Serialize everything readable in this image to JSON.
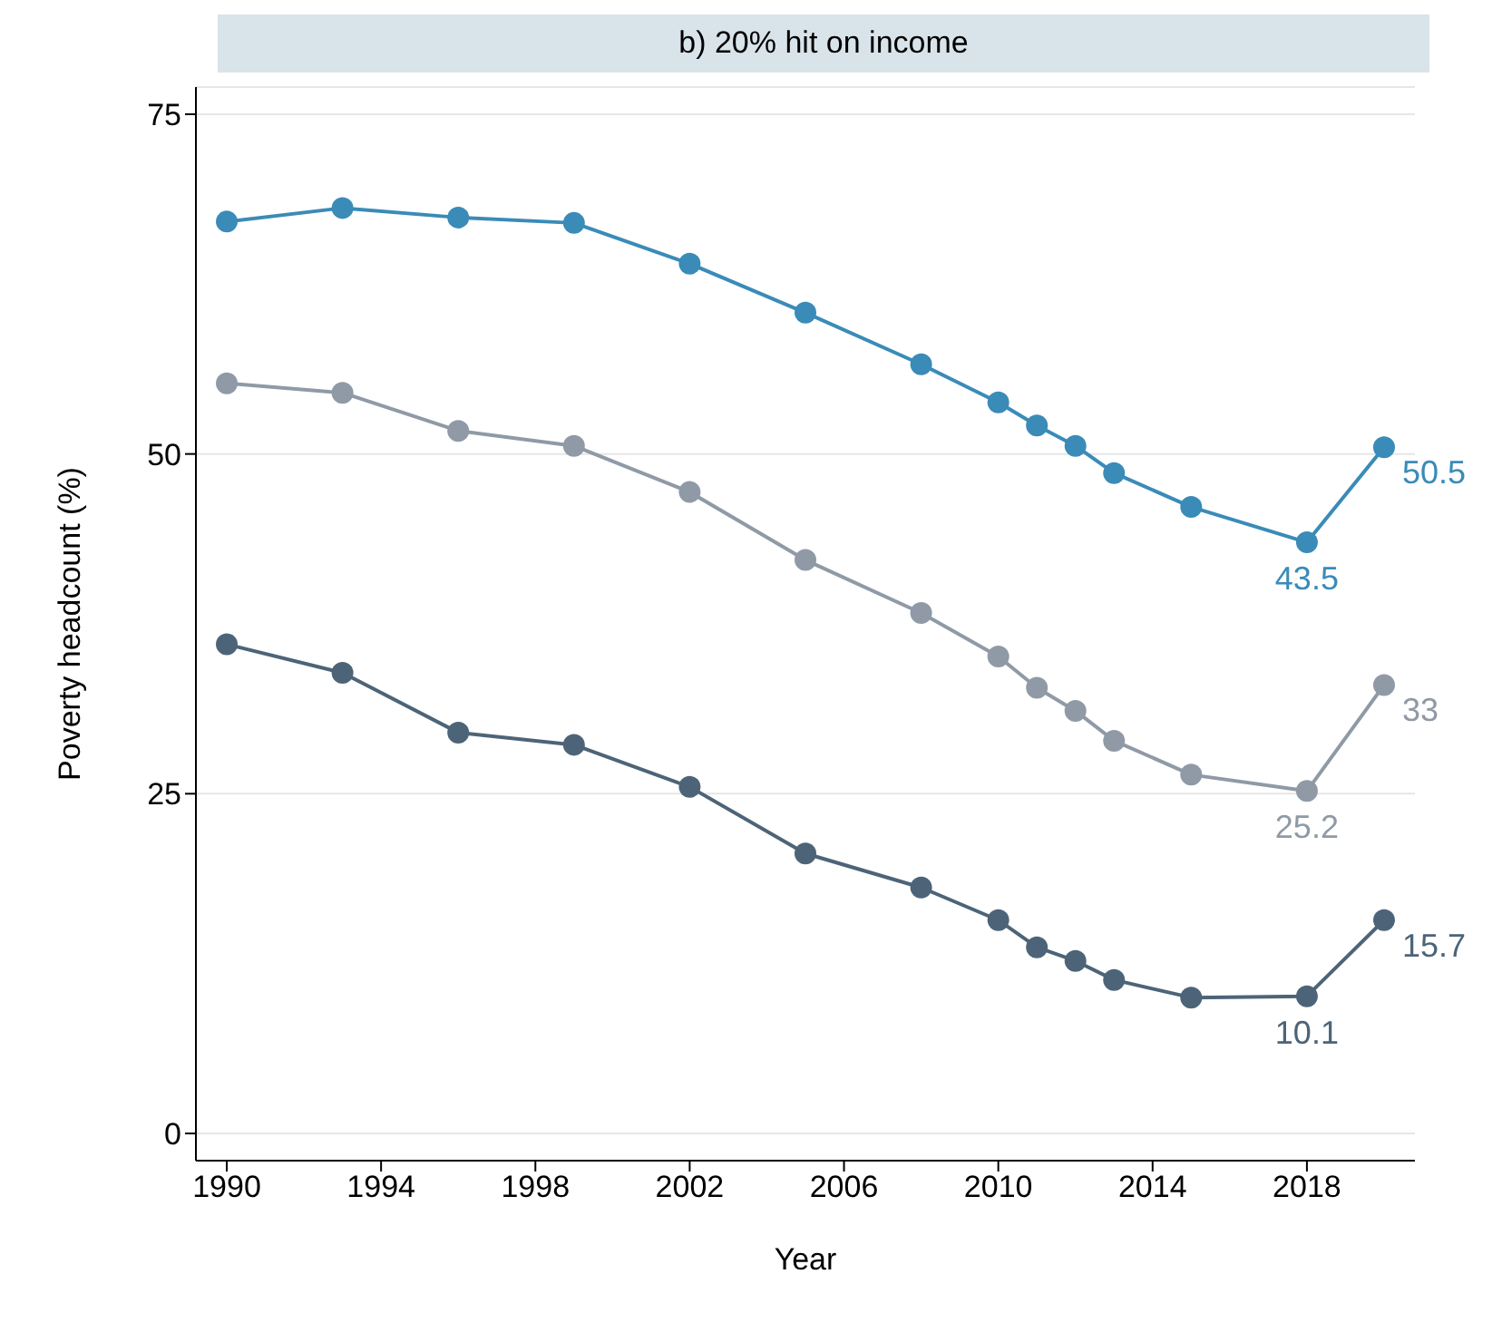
{
  "chart_data": {
    "type": "line",
    "title": "b) 20% hit on income",
    "xlabel": "Year",
    "ylabel": "Poverty headcount (%)",
    "x": [
      1990,
      1993,
      1996,
      1999,
      2002,
      2005,
      2008,
      2010,
      2011,
      2012,
      2013,
      2015,
      2018,
      2020
    ],
    "xlim": [
      1989.2,
      2020.8
    ],
    "xticks": [
      1990,
      1994,
      1998,
      2002,
      2006,
      2010,
      2014,
      2018
    ],
    "ylim": [
      -2,
      77
    ],
    "yticks": [
      0,
      25,
      50,
      75
    ],
    "grid": "y",
    "marker": "circle",
    "line_style": "solid",
    "series": [
      {
        "color": "#3a8bb8",
        "values": [
          67.1,
          68.1,
          67.4,
          67.0,
          64.0,
          60.4,
          56.6,
          53.8,
          52.1,
          50.6,
          48.6,
          46.1,
          43.5,
          50.5
        ],
        "value_labels": [
          null,
          null,
          null,
          null,
          null,
          null,
          null,
          null,
          null,
          null,
          null,
          null,
          "43.5",
          "50.5"
        ]
      },
      {
        "color": "#8f9aa6",
        "values": [
          55.2,
          54.5,
          51.7,
          50.6,
          47.2,
          42.2,
          38.3,
          35.1,
          32.8,
          31.1,
          28.9,
          26.4,
          25.2,
          33
        ],
        "value_labels": [
          null,
          null,
          null,
          null,
          null,
          null,
          null,
          null,
          null,
          null,
          null,
          null,
          "25.2",
          "33"
        ]
      },
      {
        "color": "#4d6478",
        "values": [
          36.0,
          33.9,
          29.5,
          28.6,
          25.5,
          20.6,
          18.1,
          15.7,
          13.7,
          12.7,
          11.3,
          10.0,
          10.1,
          15.7
        ],
        "value_labels": [
          null,
          null,
          null,
          null,
          null,
          null,
          null,
          null,
          null,
          null,
          null,
          null,
          "10.1",
          "15.7"
        ]
      }
    ]
  }
}
